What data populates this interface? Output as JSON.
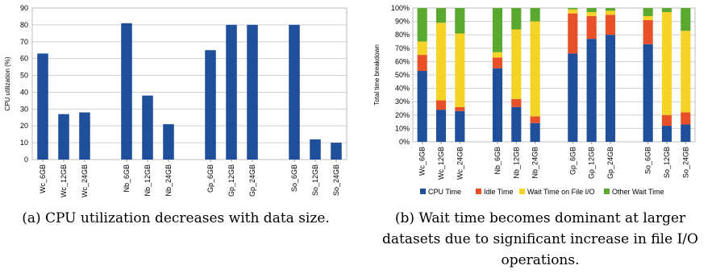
{
  "chart_data": [
    {
      "type": "bar",
      "ylabel": "CPU utilization (%)",
      "ylim": [
        0,
        90
      ],
      "yticks": [
        "0",
        "10",
        "20",
        "30",
        "40",
        "50",
        "60",
        "70",
        "80",
        "90"
      ],
      "grid": "horizontal",
      "groups": [
        {
          "categories": [
            "Wc_6GB",
            "Wc_12GB",
            "Wc_24GB"
          ],
          "values": [
            63,
            27,
            28
          ]
        },
        {
          "categories": [
            "Nb_6GB",
            "Nb_12GB",
            "Nb_24GB"
          ],
          "values": [
            81,
            38,
            21
          ]
        },
        {
          "categories": [
            "Gp_6GB",
            "Gp_12GB",
            "Gp_24GB"
          ],
          "values": [
            65,
            80,
            80
          ]
        },
        {
          "categories": [
            "So_6GB",
            "So_12GB",
            "So_24GB"
          ],
          "values": [
            80,
            12,
            10
          ]
        }
      ],
      "bar_color": "#1f4e9a",
      "caption": "(a) CPU utilization decreases with data size."
    },
    {
      "type": "bar",
      "stacked": true,
      "ylabel": "Total time breakdown",
      "ylim": [
        0,
        100
      ],
      "yticks": [
        "0%",
        "10%",
        "20%",
        "30%",
        "40%",
        "50%",
        "60%",
        "70%",
        "80%",
        "90%",
        "100%"
      ],
      "grid": "horizontal",
      "legend_position": "bottom",
      "series": [
        {
          "name": "CPU Time",
          "color": "#1f4e9a"
        },
        {
          "name": "Idle Time",
          "color": "#e8502a"
        },
        {
          "name": "Wait Time on File I/O",
          "color": "#f5d327"
        },
        {
          "name": "Other Wait Time",
          "color": "#5aa830"
        }
      ],
      "groups": [
        {
          "categories": [
            "Wc_6GB",
            "Wc_12GB",
            "Wc_24GB"
          ],
          "stacks": [
            [
              53,
              12,
              10,
              25
            ],
            [
              24,
              7,
              58,
              11
            ],
            [
              23,
              3,
              55,
              19
            ]
          ]
        },
        {
          "categories": [
            "Nb_6GB",
            "Nb_12GB",
            "Nb_24GB"
          ],
          "stacks": [
            [
              55,
              8,
              4,
              33
            ],
            [
              26,
              6,
              52,
              16
            ],
            [
              14,
              5,
              71,
              10
            ]
          ]
        },
        {
          "categories": [
            "Gp_6GB",
            "Gp_12GB",
            "Gp_24GB"
          ],
          "stacks": [
            [
              66,
              30,
              3,
              1
            ],
            [
              77,
              17,
              3,
              3
            ],
            [
              80,
              15,
              3,
              2
            ]
          ]
        },
        {
          "categories": [
            "So_6GB",
            "So_12GB",
            "So_24GB"
          ],
          "stacks": [
            [
              73,
              18,
              3,
              6
            ],
            [
              12,
              8,
              77,
              3
            ],
            [
              13,
              9,
              61,
              17
            ]
          ]
        }
      ],
      "caption": "(b) Wait time becomes dominant at larger datasets due to significant increase in file I/O operations."
    }
  ]
}
